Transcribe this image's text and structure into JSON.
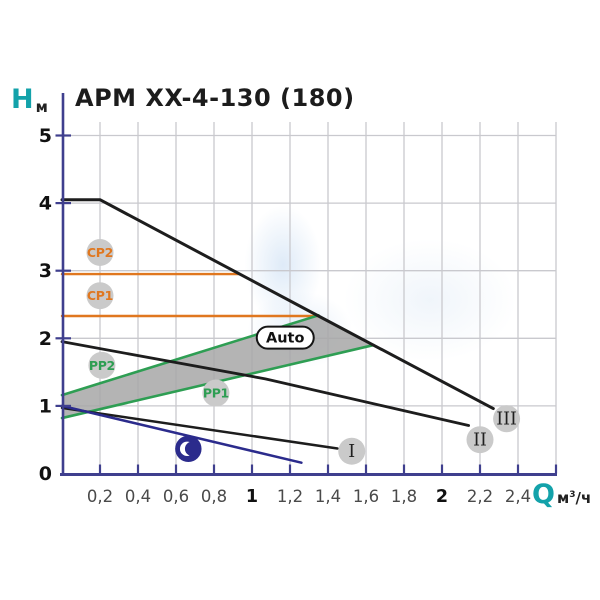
{
  "title": "APM XX-4-130 (180)",
  "y_axis": {
    "symbol": "H",
    "unit": "м"
  },
  "x_axis": {
    "symbol": "Q",
    "unit_m": "м",
    "unit_sup": "3",
    "unit_den": "/ч"
  },
  "colors": {
    "teal": "#13a2aa",
    "orange": "#e0771f",
    "green": "#2e9e53",
    "black_curve": "#1d1d1d",
    "night_blue": "#2b2b8c",
    "axis_navy": "#3f3f8e",
    "grid": "#c9c9ce",
    "badge_gray": "#cacaca",
    "auto_fill": "#a7a7a7"
  },
  "chart_data": {
    "type": "line",
    "title": "APM XX-4-130 (180)",
    "xlabel": "Q, м3/ч",
    "ylabel": "H, м",
    "xlim": [
      0,
      2.6
    ],
    "ylim": [
      0,
      5.2
    ],
    "grid": true,
    "x_ticks": [
      {
        "q": 0.2,
        "label": "0,2",
        "bold": false
      },
      {
        "q": 0.4,
        "label": "0,4",
        "bold": false
      },
      {
        "q": 0.6,
        "label": "0,6",
        "bold": false
      },
      {
        "q": 0.8,
        "label": "0,8",
        "bold": false
      },
      {
        "q": 1.0,
        "label": "1",
        "bold": true
      },
      {
        "q": 1.2,
        "label": "1,2",
        "bold": false
      },
      {
        "q": 1.4,
        "label": "1,4",
        "bold": false
      },
      {
        "q": 1.6,
        "label": "1,6",
        "bold": false
      },
      {
        "q": 1.8,
        "label": "1,8",
        "bold": false
      },
      {
        "q": 2.0,
        "label": "2",
        "bold": true
      },
      {
        "q": 2.2,
        "label": "2,2",
        "bold": false
      },
      {
        "q": 2.4,
        "label": "2,4",
        "bold": false
      },
      {
        "q": 2.6,
        "label": "",
        "bold": false
      }
    ],
    "y_ticks": [
      {
        "h": 0,
        "label": "0"
      },
      {
        "h": 1,
        "label": "1"
      },
      {
        "h": 2,
        "label": "2"
      },
      {
        "h": 3,
        "label": "3"
      },
      {
        "h": 4,
        "label": "4"
      },
      {
        "h": 5,
        "label": "5"
      }
    ],
    "series": [
      {
        "id": "cp2",
        "name": "constant-pressure-2-curve",
        "color": "#e0771f",
        "width": 2.4,
        "points": [
          [
            0,
            2.95
          ],
          [
            0.93,
            2.95
          ]
        ]
      },
      {
        "id": "cp1",
        "name": "constant-pressure-1-curve",
        "color": "#e0771f",
        "width": 2.4,
        "points": [
          [
            0,
            2.33
          ],
          [
            1.35,
            2.33
          ]
        ]
      },
      {
        "id": "pp2",
        "name": "proportional-pressure-2-curve",
        "color": "#2e9e53",
        "width": 2.6,
        "points": [
          [
            0,
            1.16
          ],
          [
            1.35,
            2.34
          ]
        ]
      },
      {
        "id": "pp1",
        "name": "proportional-pressure-1-curve",
        "color": "#2e9e53",
        "width": 2.6,
        "points": [
          [
            0,
            0.82
          ],
          [
            1.64,
            1.9
          ]
        ]
      },
      {
        "id": "speed-iii",
        "name": "speed-iii-curve",
        "color": "#1d1d1d",
        "width": 3,
        "points": [
          [
            0,
            4.05
          ],
          [
            0.2,
            4.05
          ],
          [
            1.35,
            2.33
          ],
          [
            2.27,
            0.96
          ]
        ]
      },
      {
        "id": "speed-ii",
        "name": "speed-ii-curve",
        "color": "#1d1d1d",
        "width": 2.8,
        "points": [
          [
            0,
            1.95
          ],
          [
            1.07,
            1.4
          ],
          [
            2.14,
            0.71
          ]
        ]
      },
      {
        "id": "speed-i",
        "name": "speed-i-curve",
        "color": "#1d1d1d",
        "width": 2.5,
        "points": [
          [
            0,
            0.97
          ],
          [
            1.45,
            0.37
          ]
        ]
      },
      {
        "id": "night-mode",
        "name": "night-mode-curve",
        "color": "#2b2b8c",
        "width": 2.5,
        "points": [
          [
            0,
            1.0
          ],
          [
            1.26,
            0.16
          ]
        ]
      }
    ],
    "auto_region": {
      "label": "Auto",
      "fill": "#a7a7a7",
      "opacity": 0.85,
      "points": [
        [
          0,
          1.16
        ],
        [
          1.35,
          2.34
        ],
        [
          1.64,
          1.9
        ],
        [
          0,
          0.82
        ]
      ]
    },
    "auto_badge": {
      "text": "Auto",
      "q": 1.175,
      "h": 2.01
    },
    "badges": [
      {
        "id": "cp2",
        "text": "CP2",
        "q": 0.2,
        "h": 3.27,
        "color": "#e0771f",
        "roman": false
      },
      {
        "id": "cp1",
        "text": "CP1",
        "q": 0.2,
        "h": 2.63,
        "color": "#e0771f",
        "roman": false
      },
      {
        "id": "pp2",
        "text": "PP2",
        "q": 0.21,
        "h": 1.6,
        "color": "#2e9e53",
        "roman": false
      },
      {
        "id": "pp1",
        "text": "PP1",
        "q": 0.81,
        "h": 1.19,
        "color": "#2e9e53",
        "roman": false
      },
      {
        "id": "speed-i",
        "text": "I",
        "q": 1.525,
        "h": 0.33,
        "color": "#1f1f1f",
        "roman": true
      },
      {
        "id": "speed-ii",
        "text": "II",
        "q": 2.2,
        "h": 0.5,
        "color": "#1f1f1f",
        "roman": true
      },
      {
        "id": "speed-iii",
        "text": "III",
        "q": 2.34,
        "h": 0.81,
        "color": "#1f1f1f",
        "roman": true
      }
    ],
    "night_icon": {
      "name": "crescent-moon-icon",
      "q": 0.665,
      "h": 0.365
    }
  }
}
